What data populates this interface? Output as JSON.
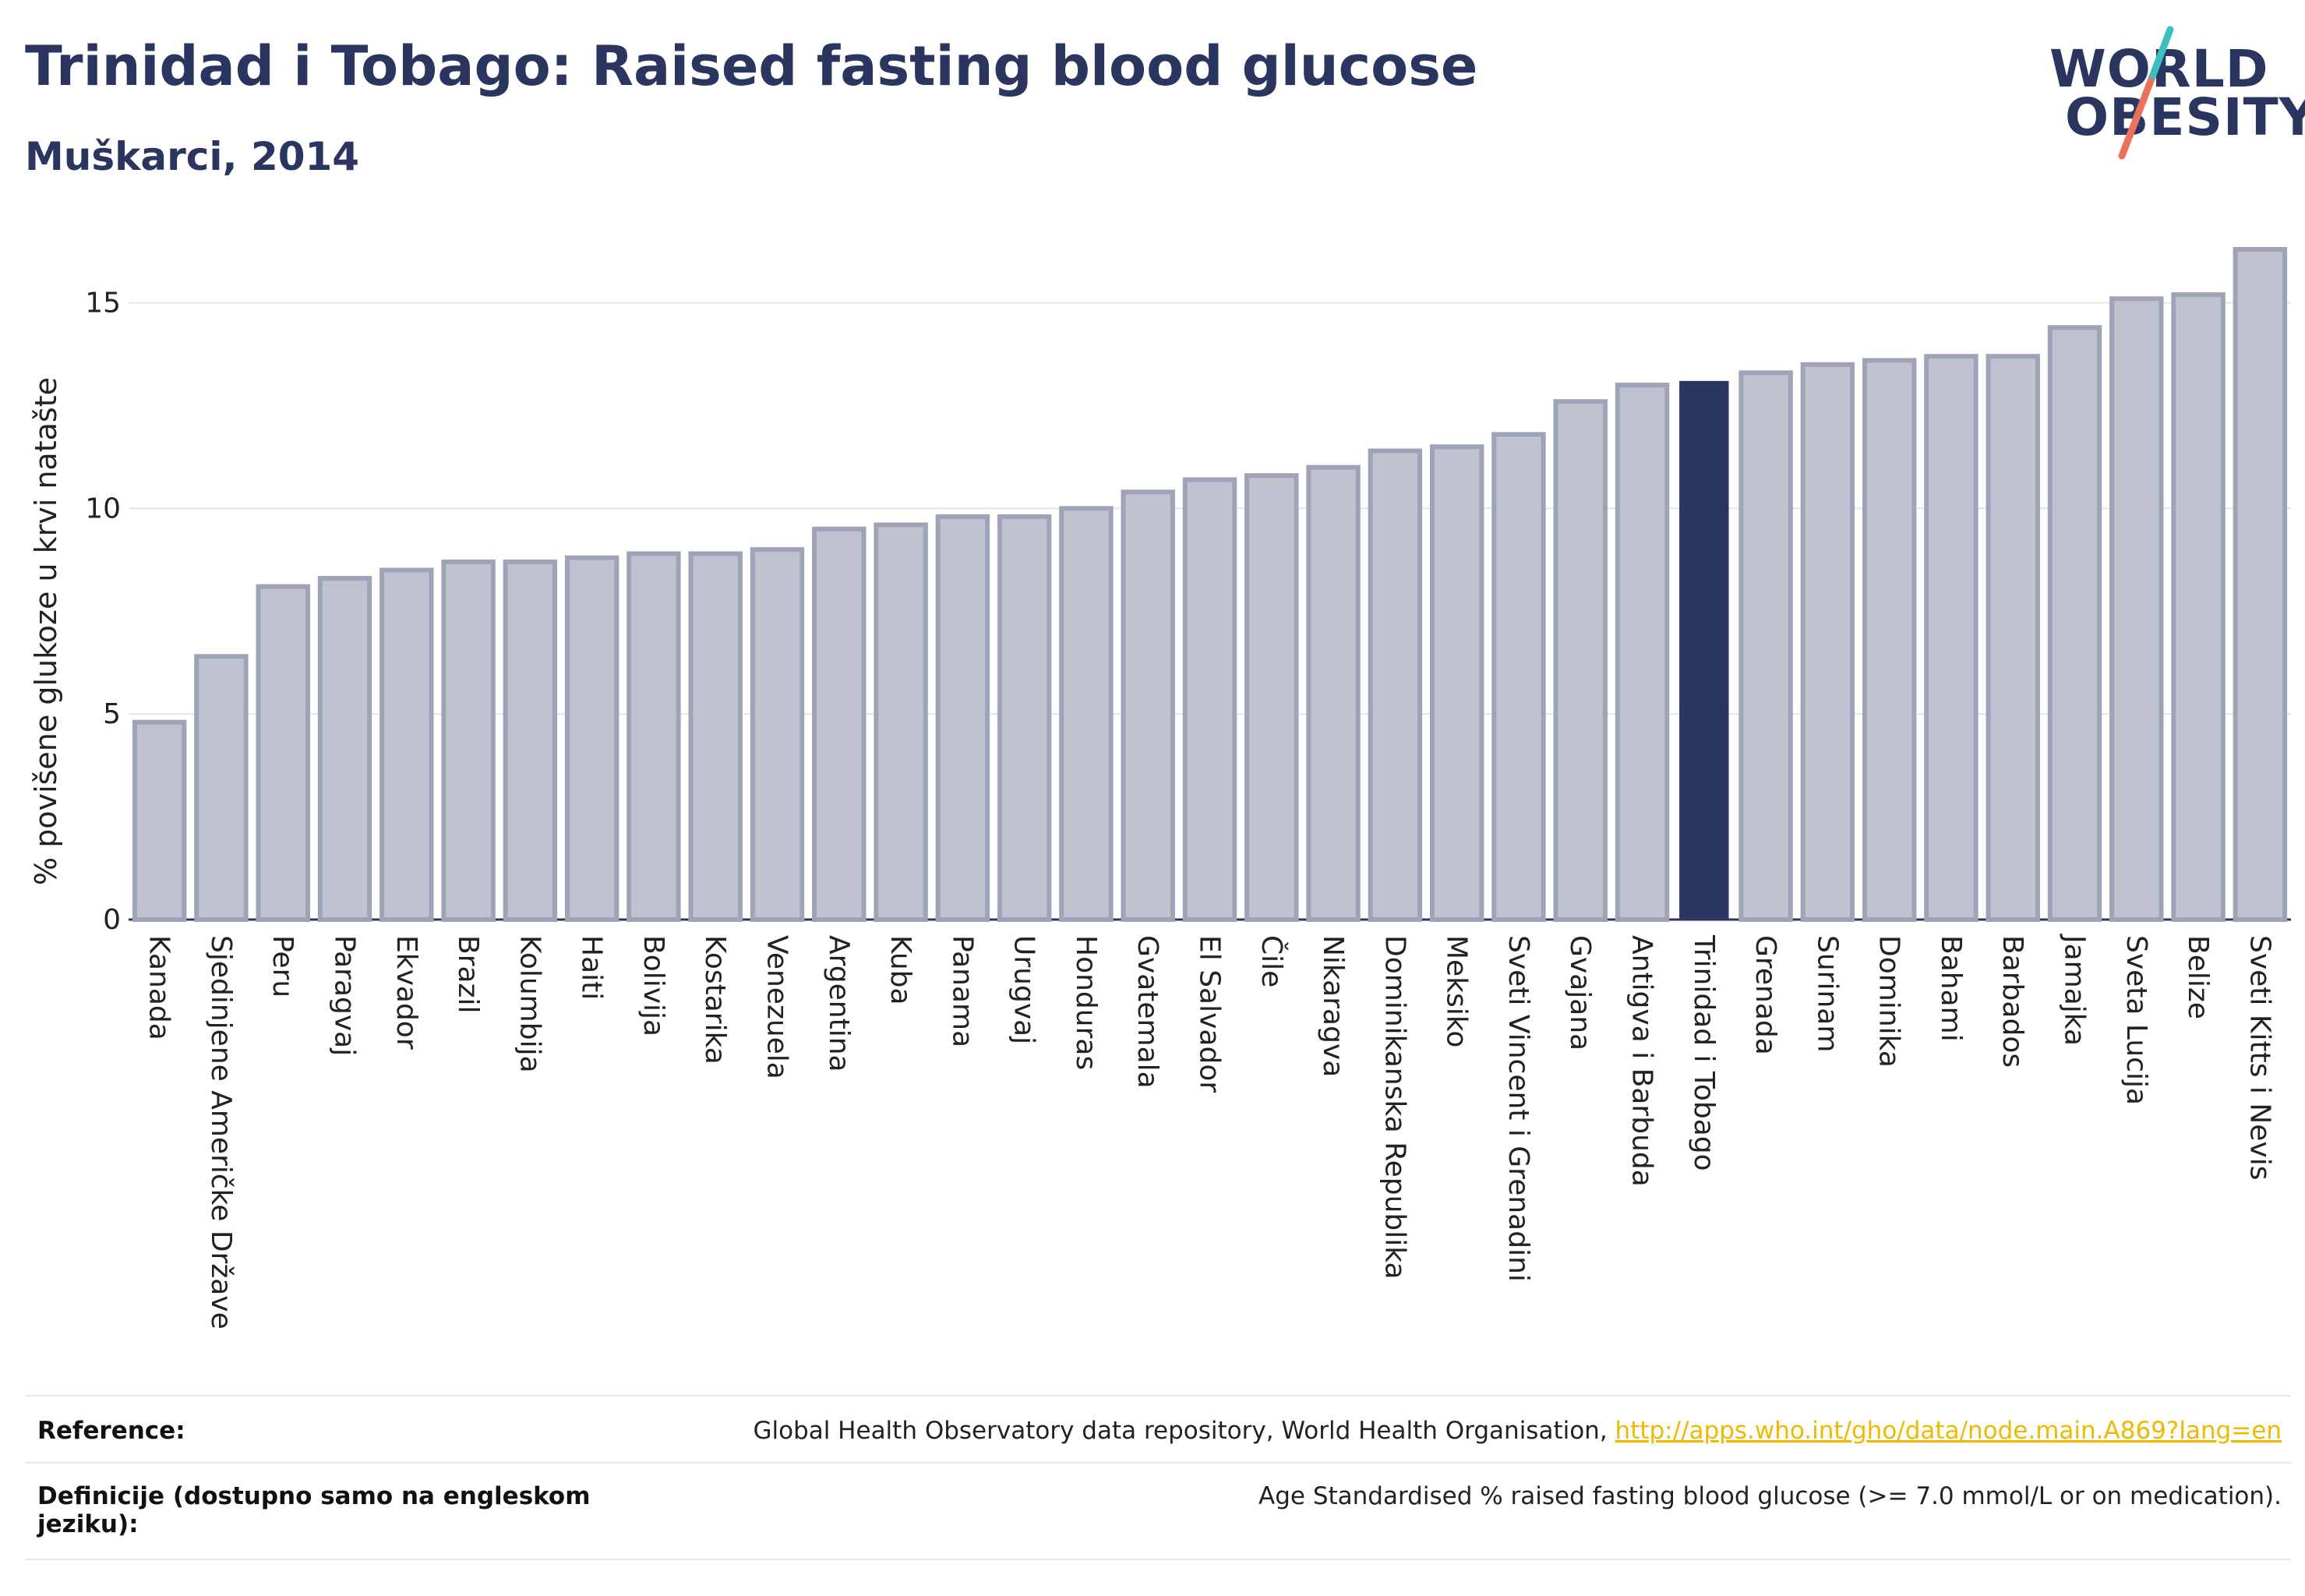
{
  "header": {
    "title": "Trinidad i Tobago: Raised fasting blood glucose",
    "subtitle": "Muškarci, 2014"
  },
  "logo": {
    "line1": "WORLD",
    "line2": "OBESITY",
    "colors": {
      "text": "#2a3560",
      "slash_top": "#3bbfbf",
      "slash_bottom": "#e9735a"
    }
  },
  "chart_data": {
    "type": "bar",
    "title": "Trinidad i Tobago: Raised fasting blood glucose",
    "subtitle": "Muškarci, 2014",
    "xlabel": "",
    "ylabel": "% povišene glukoze u krvi natašte",
    "ylim": [
      0,
      16.3
    ],
    "yticks": [
      0,
      5,
      10,
      15
    ],
    "grid": true,
    "highlight": "Trinidad i Tobago",
    "colors": {
      "bar": "#bfc3d0",
      "bar_edge": "#9ea3b8",
      "highlight": "#2a3560"
    },
    "categories": [
      "Kanada",
      "Sjedinjene Američke Države",
      "Peru",
      "Paragvaj",
      "Ekvador",
      "Brazil",
      "Kolumbija",
      "Haiti",
      "Bolivija",
      "Kostarika",
      "Venezuela",
      "Argentina",
      "Kuba",
      "Panama",
      "Urugvaj",
      "Honduras",
      "Gvatemala",
      "El Salvador",
      "Čile",
      "Nikaragva",
      "Dominikanska Republika",
      "Meksiko",
      "Sveti Vincent i Grenadini",
      "Gvajana",
      "Antigva i Barbuda",
      "Trinidad i Tobago",
      "Grenada",
      "Surinam",
      "Dominika",
      "Bahami",
      "Barbados",
      "Jamajka",
      "Sveta Lucija",
      "Belize",
      "Sveti Kitts i Nevis"
    ],
    "values": [
      4.8,
      6.4,
      8.1,
      8.3,
      8.5,
      8.7,
      8.7,
      8.8,
      8.9,
      8.9,
      9.0,
      9.5,
      9.6,
      9.8,
      9.8,
      10.0,
      10.4,
      10.7,
      10.8,
      11.0,
      11.4,
      11.5,
      11.8,
      12.6,
      13.0,
      13.1,
      13.3,
      13.5,
      13.6,
      13.7,
      13.7,
      14.4,
      15.1,
      15.2,
      16.3
    ]
  },
  "footer": {
    "reference_label": "Reference:",
    "reference_text": "Global Health Observatory data repository, World Health Organisation, ",
    "reference_link": "http://apps.who.int/gho/data/node.main.A869?lang=en",
    "definition_label_line1": "Definicije (dostupno samo na engleskom",
    "definition_label_line2": "jeziku):",
    "definition_text": "Age Standardised % raised fasting blood glucose (>= 7.0 mmol/L or on medication)."
  }
}
